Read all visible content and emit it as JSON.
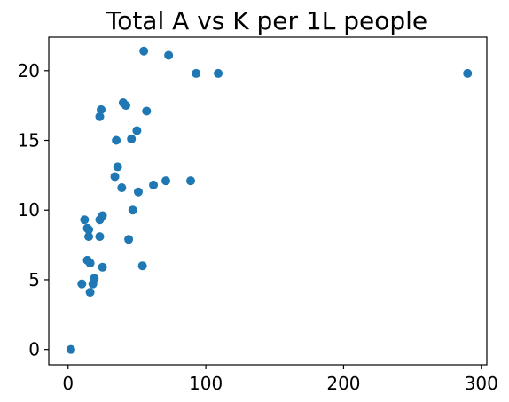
{
  "chart_data": {
    "type": "scatter",
    "title": "Total A vs K per 1L people",
    "xlabel": "",
    "ylabel": "",
    "xlim": [
      -14,
      304
    ],
    "ylim": [
      -1.1,
      22.4
    ],
    "xticks": [
      0,
      100,
      200,
      300
    ],
    "xtick_labels": [
      "0",
      "100",
      "200",
      "300"
    ],
    "yticks": [
      0,
      5,
      10,
      15,
      20
    ],
    "ytick_labels": [
      "0",
      "5",
      "10",
      "15",
      "20"
    ],
    "grid": false,
    "legend": "none",
    "marker_color": "#1f77b4",
    "x": [
      2,
      10,
      12,
      14,
      14,
      15,
      15,
      16,
      16,
      18,
      19,
      23,
      23,
      23,
      24,
      25,
      25,
      34,
      35,
      36,
      39,
      40,
      42,
      44,
      46,
      47,
      50,
      51,
      54,
      55,
      57,
      62,
      71,
      73,
      89,
      93,
      109,
      290
    ],
    "y": [
      0.0,
      4.7,
      9.3,
      6.4,
      8.7,
      8.1,
      8.6,
      4.1,
      6.2,
      4.7,
      5.1,
      9.3,
      8.1,
      16.7,
      17.2,
      5.9,
      9.6,
      12.4,
      15.0,
      13.1,
      11.6,
      17.7,
      17.5,
      7.9,
      15.1,
      10.0,
      15.7,
      11.3,
      6.0,
      21.4,
      17.1,
      11.8,
      12.1,
      21.1,
      12.1,
      19.8,
      19.8,
      19.8
    ]
  }
}
